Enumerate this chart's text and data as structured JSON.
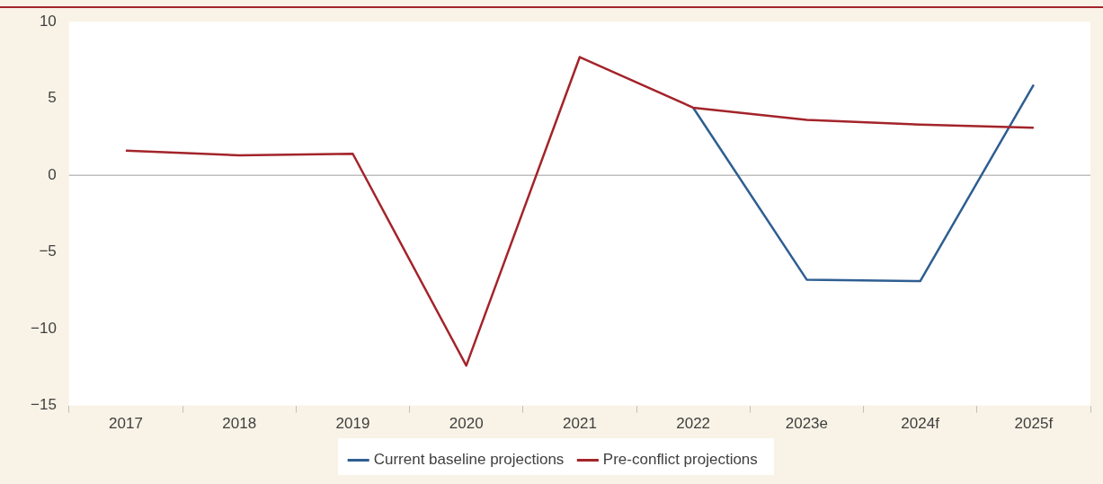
{
  "chart_data": {
    "type": "line",
    "categories": [
      "2017",
      "2018",
      "2019",
      "2020",
      "2021",
      "2022",
      "2023e",
      "2024f",
      "2025f"
    ],
    "series": [
      {
        "name": "Current baseline projections",
        "color": "#2e5e92",
        "values": [
          null,
          null,
          null,
          null,
          null,
          4.4,
          -6.8,
          -6.9,
          5.9
        ]
      },
      {
        "name": "Pre-conflict projections",
        "color": "#a3242a",
        "values": [
          1.6,
          1.3,
          1.4,
          -12.4,
          7.7,
          4.4,
          3.6,
          3.3,
          3.1
        ]
      }
    ],
    "ylim": [
      -15,
      10
    ],
    "yticks": [
      -15,
      -10,
      -5,
      0,
      5,
      10
    ],
    "ref_lines": [
      {
        "axis": "y",
        "value": 0,
        "color": "#bfbfbf"
      }
    ],
    "grid": false,
    "legend": "bottom",
    "marker": "none",
    "line_style": "solid"
  }
}
